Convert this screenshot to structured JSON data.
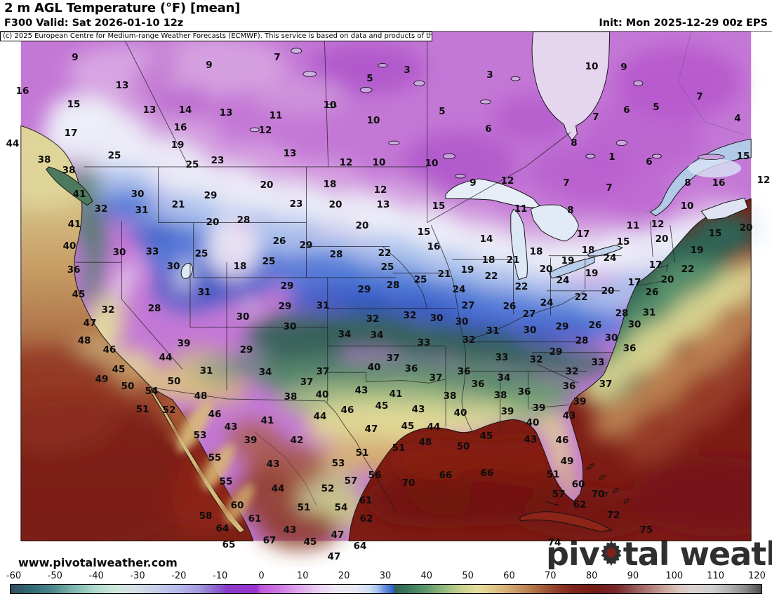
{
  "header": {
    "title": "2 m AGL Temperature (°F) [mean]",
    "subtitle": "F300 Valid: Sat 2026-01-10 12z",
    "init": "Init: Mon 2025-12-29 00z EPS",
    "copyright": "(c) 2025 European Centre for Medium-range Weather Forecasts (ECMWF). This service is based on data and products of the ECMWF."
  },
  "map": {
    "watermark_part1": "piv",
    "watermark_part2": "tal weather",
    "watermark_icon": "gear-icon",
    "url_label": "www.pivotalweather.com",
    "units": "°F",
    "temps": [
      [
        9,
        107,
        82
      ],
      [
        13,
        174,
        122
      ],
      [
        9,
        298,
        93
      ],
      [
        16,
        32,
        130
      ],
      [
        15,
        105,
        149
      ],
      [
        13,
        213,
        157
      ],
      [
        14,
        264,
        157
      ],
      [
        13,
        322,
        161
      ],
      [
        17,
        101,
        190
      ],
      [
        16,
        257,
        182
      ],
      [
        19,
        253,
        207
      ],
      [
        25,
        163,
        222
      ],
      [
        25,
        274,
        235
      ],
      [
        23,
        310,
        229
      ],
      [
        44,
        18,
        205
      ],
      [
        38,
        63,
        228
      ],
      [
        38,
        98,
        243
      ],
      [
        41,
        113,
        277
      ],
      [
        30,
        196,
        277
      ],
      [
        32,
        144,
        298
      ],
      [
        31,
        202,
        300
      ],
      [
        21,
        254,
        292
      ],
      [
        29,
        300,
        279
      ],
      [
        7,
        395,
        82
      ],
      [
        3,
        580,
        100
      ],
      [
        3,
        698,
        107
      ],
      [
        5,
        527,
        112
      ],
      [
        10,
        470,
        150
      ],
      [
        11,
        393,
        165
      ],
      [
        5,
        630,
        159
      ],
      [
        10,
        532,
        172
      ],
      [
        6,
        696,
        184
      ],
      [
        12,
        378,
        186
      ],
      [
        13,
        413,
        219
      ],
      [
        12,
        493,
        232
      ],
      [
        10,
        540,
        232
      ],
      [
        10,
        615,
        233
      ],
      [
        20,
        380,
        264
      ],
      [
        18,
        470,
        263
      ],
      [
        12,
        542,
        271
      ],
      [
        9,
        674,
        261
      ],
      [
        12,
        723,
        258
      ],
      [
        23,
        422,
        291
      ],
      [
        20,
        478,
        292
      ],
      [
        13,
        546,
        292
      ],
      [
        15,
        625,
        294
      ],
      [
        10,
        843,
        95
      ],
      [
        9,
        889,
        96
      ],
      [
        7,
        997,
        138
      ],
      [
        4,
        1051,
        169
      ],
      [
        5,
        935,
        153
      ],
      [
        6,
        893,
        157
      ],
      [
        7,
        849,
        167
      ],
      [
        8,
        818,
        204
      ],
      [
        1,
        872,
        224
      ],
      [
        6,
        925,
        231
      ],
      [
        15,
        1059,
        223
      ],
      [
        7,
        807,
        261
      ],
      [
        7,
        868,
        268
      ],
      [
        8,
        980,
        261
      ],
      [
        16,
        1024,
        261
      ],
      [
        10,
        979,
        294
      ],
      [
        8,
        813,
        300
      ],
      [
        11,
        742,
        298
      ],
      [
        12,
        1088,
        257
      ],
      [
        41,
        106,
        320
      ],
      [
        20,
        303,
        317
      ],
      [
        28,
        347,
        314
      ],
      [
        40,
        99,
        351
      ],
      [
        30,
        170,
        360
      ],
      [
        33,
        217,
        359
      ],
      [
        25,
        287,
        362
      ],
      [
        30,
        247,
        380
      ],
      [
        18,
        342,
        380
      ],
      [
        36,
        105,
        385
      ],
      [
        45,
        112,
        420
      ],
      [
        31,
        291,
        417
      ],
      [
        32,
        154,
        442
      ],
      [
        28,
        220,
        440
      ],
      [
        30,
        346,
        452
      ],
      [
        47,
        128,
        461
      ],
      [
        48,
        120,
        486
      ],
      [
        46,
        156,
        499
      ],
      [
        39,
        262,
        490
      ],
      [
        29,
        351,
        499
      ],
      [
        44,
        236,
        510
      ],
      [
        45,
        169,
        527
      ],
      [
        31,
        294,
        529
      ],
      [
        49,
        145,
        541
      ],
      [
        50,
        182,
        551
      ],
      [
        50,
        248,
        544
      ],
      [
        54,
        216,
        558
      ],
      [
        20,
        516,
        322
      ],
      [
        15,
        604,
        331
      ],
      [
        26,
        398,
        344
      ],
      [
        29,
        436,
        350
      ],
      [
        16,
        618,
        352
      ],
      [
        14,
        693,
        341
      ],
      [
        28,
        479,
        363
      ],
      [
        22,
        548,
        361
      ],
      [
        18,
        696,
        371
      ],
      [
        21,
        731,
        371
      ],
      [
        25,
        383,
        373
      ],
      [
        25,
        552,
        381
      ],
      [
        19,
        666,
        385
      ],
      [
        21,
        633,
        391
      ],
      [
        22,
        700,
        394
      ],
      [
        25,
        599,
        399
      ],
      [
        24,
        654,
        413
      ],
      [
        29,
        409,
        408
      ],
      [
        28,
        560,
        407
      ],
      [
        29,
        519,
        413
      ],
      [
        29,
        406,
        437
      ],
      [
        31,
        460,
        436
      ],
      [
        27,
        667,
        436
      ],
      [
        26,
        726,
        437
      ],
      [
        30,
        413,
        466
      ],
      [
        32,
        531,
        455
      ],
      [
        32,
        584,
        450
      ],
      [
        30,
        622,
        454
      ],
      [
        30,
        658,
        459
      ],
      [
        31,
        702,
        472
      ],
      [
        34,
        491,
        477
      ],
      [
        34,
        537,
        478
      ],
      [
        32,
        668,
        485
      ],
      [
        33,
        604,
        489
      ],
      [
        33,
        715,
        510
      ],
      [
        37,
        560,
        511
      ],
      [
        34,
        378,
        531
      ],
      [
        40,
        533,
        524
      ],
      [
        37,
        460,
        530
      ],
      [
        36,
        586,
        526
      ],
      [
        36,
        661,
        530
      ],
      [
        37,
        621,
        539
      ],
      [
        34,
        718,
        539
      ],
      [
        37,
        437,
        545
      ],
      [
        36,
        681,
        548
      ],
      [
        43,
        515,
        557
      ],
      [
        11,
        902,
        322
      ],
      [
        12,
        937,
        320
      ],
      [
        17,
        831,
        334
      ],
      [
        15,
        1019,
        333
      ],
      [
        20,
        943,
        341
      ],
      [
        15,
        888,
        345
      ],
      [
        20,
        1063,
        325
      ],
      [
        18,
        764,
        359
      ],
      [
        18,
        838,
        357
      ],
      [
        19,
        993,
        357
      ],
      [
        24,
        869,
        368
      ],
      [
        19,
        809,
        372
      ],
      [
        17,
        934,
        378
      ],
      [
        22,
        980,
        384
      ],
      [
        20,
        778,
        384
      ],
      [
        19,
        843,
        390
      ],
      [
        24,
        802,
        400
      ],
      [
        22,
        743,
        409
      ],
      [
        17,
        904,
        403
      ],
      [
        20,
        951,
        399
      ],
      [
        22,
        828,
        424
      ],
      [
        20,
        866,
        415
      ],
      [
        24,
        779,
        432
      ],
      [
        26,
        929,
        417
      ],
      [
        28,
        886,
        447
      ],
      [
        31,
        925,
        446
      ],
      [
        27,
        754,
        448
      ],
      [
        26,
        848,
        464
      ],
      [
        29,
        801,
        466
      ],
      [
        30,
        755,
        471
      ],
      [
        30,
        904,
        463
      ],
      [
        30,
        871,
        482
      ],
      [
        28,
        829,
        486
      ],
      [
        29,
        792,
        502
      ],
      [
        32,
        764,
        513
      ],
      [
        33,
        852,
        517
      ],
      [
        32,
        815,
        530
      ],
      [
        36,
        897,
        497
      ],
      [
        36,
        811,
        551
      ],
      [
        37,
        863,
        548
      ],
      [
        38,
        414,
        566
      ],
      [
        40,
        459,
        563
      ],
      [
        41,
        564,
        562
      ],
      [
        38,
        641,
        565
      ],
      [
        38,
        713,
        564
      ],
      [
        46,
        495,
        585
      ],
      [
        45,
        544,
        579
      ],
      [
        43,
        596,
        584
      ],
      [
        40,
        656,
        589
      ],
      [
        39,
        723,
        587
      ],
      [
        44,
        456,
        594
      ],
      [
        41,
        381,
        600
      ],
      [
        47,
        529,
        612
      ],
      [
        45,
        581,
        608
      ],
      [
        44,
        618,
        609
      ],
      [
        45,
        693,
        622
      ],
      [
        42,
        423,
        628
      ],
      [
        48,
        606,
        631
      ],
      [
        51,
        568,
        639
      ],
      [
        50,
        660,
        637
      ],
      [
        43,
        389,
        662
      ],
      [
        53,
        482,
        661
      ],
      [
        51,
        516,
        646
      ],
      [
        66,
        635,
        678
      ],
      [
        66,
        694,
        675
      ],
      [
        70,
        582,
        689
      ],
      [
        57,
        500,
        686
      ],
      [
        56,
        534,
        678
      ],
      [
        44,
        396,
        697
      ],
      [
        52,
        467,
        697
      ],
      [
        61,
        521,
        714
      ],
      [
        51,
        433,
        724
      ],
      [
        54,
        486,
        724
      ],
      [
        62,
        522,
        740
      ],
      [
        43,
        413,
        756
      ],
      [
        45,
        442,
        773
      ],
      [
        67,
        384,
        771
      ],
      [
        47,
        481,
        763
      ],
      [
        64,
        513,
        779
      ],
      [
        47,
        476,
        794
      ],
      [
        36,
        747,
        559
      ],
      [
        51,
        203,
        584
      ],
      [
        52,
        241,
        585
      ],
      [
        48,
        286,
        565
      ],
      [
        46,
        306,
        591
      ],
      [
        43,
        329,
        609
      ],
      [
        53,
        285,
        621
      ],
      [
        39,
        357,
        628
      ],
      [
        55,
        306,
        653
      ],
      [
        55,
        322,
        687
      ],
      [
        60,
        338,
        721
      ],
      [
        58,
        293,
        736
      ],
      [
        64,
        317,
        754
      ],
      [
        61,
        363,
        740
      ],
      [
        65,
        326,
        777
      ],
      [
        39,
        826,
        573
      ],
      [
        39,
        768,
        582
      ],
      [
        43,
        811,
        593
      ],
      [
        40,
        759,
        603
      ],
      [
        43,
        756,
        627
      ],
      [
        46,
        801,
        628
      ],
      [
        49,
        808,
        658
      ],
      [
        51,
        788,
        677
      ],
      [
        60,
        824,
        691
      ],
      [
        57,
        796,
        705
      ],
      [
        70,
        852,
        705
      ],
      [
        62,
        826,
        720
      ],
      [
        72,
        874,
        735
      ],
      [
        75,
        921,
        756
      ],
      [
        74,
        790,
        774
      ]
    ]
  },
  "colorbar": {
    "ticks": [
      "-60",
      "-50",
      "-40",
      "-30",
      "-20",
      "-10",
      "0",
      "10",
      "20",
      "30",
      "40",
      "50",
      "60",
      "70",
      "80",
      "90",
      "100",
      "110",
      "120"
    ],
    "range_min": -60,
    "range_max": 120,
    "stops": [
      [
        -60,
        "#334a60"
      ],
      [
        -55,
        "#2f6b75"
      ],
      [
        -50,
        "#4b878a"
      ],
      [
        -45,
        "#7eb5ad"
      ],
      [
        -40,
        "#abd8cb"
      ],
      [
        -35,
        "#cfe7dd"
      ],
      [
        -30,
        "#d6e0e7"
      ],
      [
        -25,
        "#c7cdeb"
      ],
      [
        -20,
        "#b6bce9"
      ],
      [
        -15,
        "#a39bdf"
      ],
      [
        -11,
        "#8d66d0"
      ],
      [
        -8,
        "#8c3ac8"
      ],
      [
        -1,
        "#9934cd"
      ],
      [
        0,
        "#c058da"
      ],
      [
        4,
        "#cd74e2"
      ],
      [
        9,
        "#dfa5ea"
      ],
      [
        14,
        "#ecd2f2"
      ],
      [
        18,
        "#f0e9f6"
      ],
      [
        23,
        "#e6ebf5"
      ],
      [
        26,
        "#cfdef2"
      ],
      [
        28,
        "#a3c2ec"
      ],
      [
        30,
        "#5c88dc"
      ],
      [
        31.9,
        "#2f5ecb"
      ],
      [
        32,
        "#2e6153"
      ],
      [
        35,
        "#3a775d"
      ],
      [
        40,
        "#629b6f"
      ],
      [
        44,
        "#95b97f"
      ],
      [
        48,
        "#c5d28d"
      ],
      [
        52,
        "#e5de9c"
      ],
      [
        55,
        "#e0cd89"
      ],
      [
        59,
        "#d4ad74"
      ],
      [
        63,
        "#c08a58"
      ],
      [
        67,
        "#a8613c"
      ],
      [
        71,
        "#8f3d28"
      ],
      [
        75,
        "#7c251c"
      ],
      [
        80,
        "#721b16"
      ],
      [
        85,
        "#78262a"
      ],
      [
        89,
        "#91504f"
      ],
      [
        93,
        "#b07b77"
      ],
      [
        97,
        "#cca69e"
      ],
      [
        100,
        "#d9c3bb"
      ],
      [
        103,
        "#dad2cf"
      ],
      [
        108,
        "#cfcfcf"
      ],
      [
        112,
        "#b3b3b3"
      ],
      [
        116,
        "#8c8c8c"
      ],
      [
        120,
        "#4d4d4d"
      ]
    ]
  }
}
